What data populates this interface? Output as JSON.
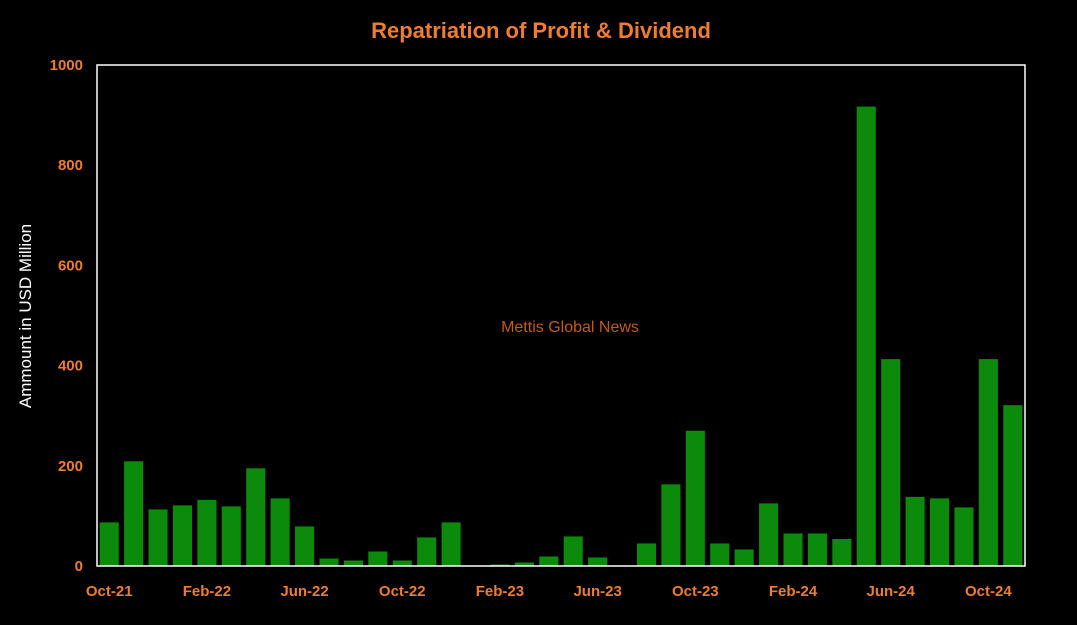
{
  "colors": {
    "background": "#000000",
    "bar": "#0B8A0B",
    "title": "#ED7D31",
    "tick_label": "#ED7D31",
    "axis_label": "#FFFFFF",
    "watermark": "#C55A11",
    "frame": "#FFFFFF"
  },
  "watermark": "Mettis Global News",
  "chart_data": {
    "type": "bar",
    "title": "Repatriation of Profit & Dividend",
    "xlabel": "",
    "ylabel": "Ammount in USD Million",
    "ylim": [
      0,
      1000
    ],
    "yticks": [
      0,
      200,
      400,
      600,
      800,
      1000
    ],
    "grid": false,
    "legend": "none",
    "categories": [
      "Oct-21",
      "Nov-21",
      "Dec-21",
      "Jan-22",
      "Feb-22",
      "Mar-22",
      "Apr-22",
      "May-22",
      "Jun-22",
      "Jul-22",
      "Aug-22",
      "Sep-22",
      "Oct-22",
      "Nov-22",
      "Dec-22",
      "Jan-23",
      "Feb-23",
      "Mar-23",
      "Apr-23",
      "May-23",
      "Jun-23",
      "Jul-23",
      "Aug-23",
      "Sep-23",
      "Oct-23",
      "Nov-23",
      "Dec-23",
      "Jan-24",
      "Feb-24",
      "Mar-24",
      "Apr-24",
      "May-24",
      "Jun-24",
      "Jul-24",
      "Aug-24",
      "Sep-24",
      "Oct-24",
      "Nov-24"
    ],
    "shown_tick_labels": [
      "Oct-21",
      "Feb-22",
      "Jun-22",
      "Oct-22",
      "Feb-23",
      "Jun-23",
      "Oct-23",
      "Feb-24",
      "Jun-24",
      "Oct-24"
    ],
    "values": [
      87,
      209,
      113,
      121,
      132,
      119,
      195,
      135,
      79,
      15,
      11,
      29,
      11,
      57,
      87,
      0,
      3,
      7,
      19,
      59,
      17,
      0,
      45,
      163,
      270,
      45,
      33,
      125,
      65,
      65,
      54,
      917,
      413,
      138,
      135,
      117,
      413,
      321
    ]
  }
}
